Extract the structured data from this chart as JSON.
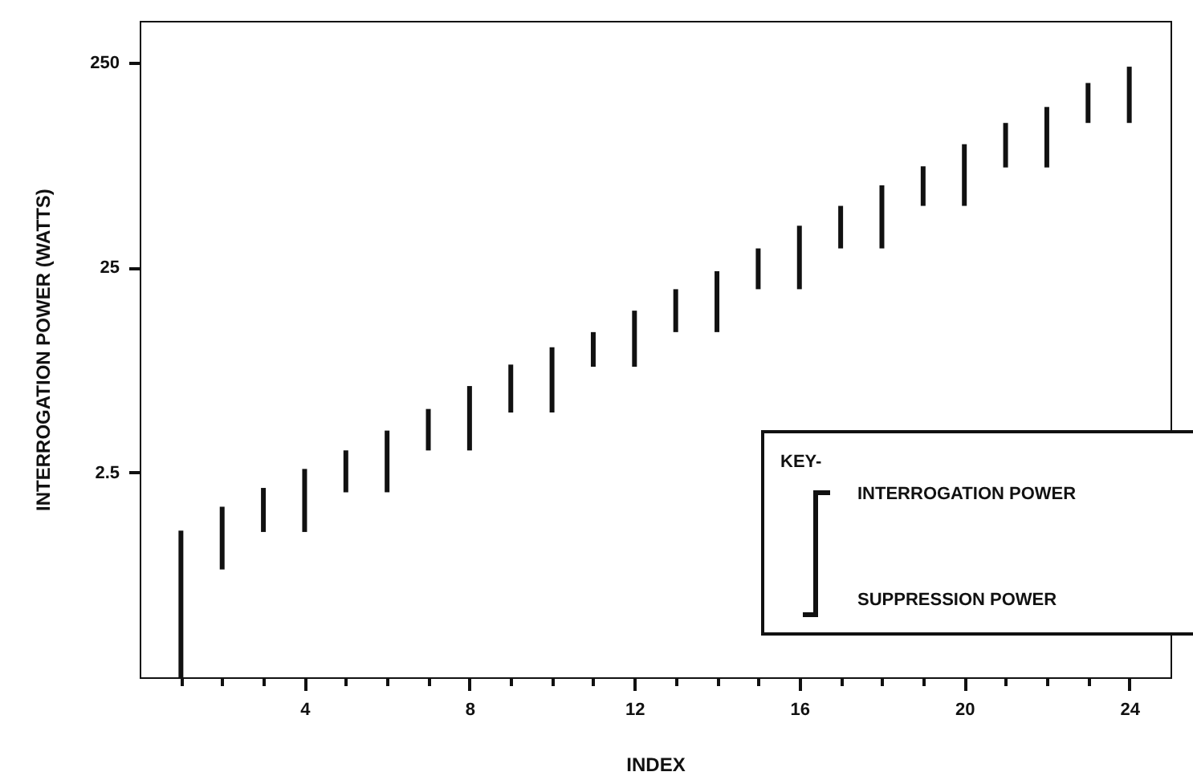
{
  "chart_data": {
    "type": "bar",
    "xlabel": "INDEX",
    "ylabel": "INTERROGATION POWER (WATTS)",
    "x": [
      1,
      2,
      3,
      4,
      5,
      6,
      7,
      8,
      9,
      10,
      11,
      12,
      13,
      14,
      15,
      16,
      17,
      18,
      19,
      20,
      21,
      22,
      23,
      24
    ],
    "base": [
      0.25,
      0.84,
      1.28,
      1.28,
      2.0,
      2.0,
      3.2,
      3.2,
      4.9,
      4.9,
      8.2,
      8.2,
      12.1,
      12.1,
      19.6,
      19.6,
      31,
      31,
      50,
      50,
      77,
      77,
      127,
      127
    ],
    "values": [
      1.05,
      0.86,
      0.82,
      1.32,
      1.2,
      2.0,
      1.9,
      3.4,
      3.5,
      5.3,
      3.9,
      7.2,
      7.5,
      11.9,
      11.4,
      20.4,
      19,
      32,
      28,
      50,
      50,
      75,
      72,
      112
    ],
    "color": "#111111",
    "log": "y",
    "ylim": [
      0.25,
      400
    ],
    "yticks": [
      2.5,
      25,
      250
    ],
    "xlim": [
      0,
      25
    ],
    "xticks": [
      {
        "value": 1,
        "label": null
      },
      {
        "value": 2,
        "label": null
      },
      {
        "value": 3,
        "label": null
      },
      4,
      {
        "value": 5,
        "label": null
      },
      {
        "value": 6,
        "label": null
      },
      {
        "value": 7,
        "label": null
      },
      8,
      {
        "value": 9,
        "label": null
      },
      {
        "value": 10,
        "label": null
      },
      {
        "value": 11,
        "label": null
      },
      12,
      {
        "value": 13,
        "label": null
      },
      {
        "value": 14,
        "label": null
      },
      {
        "value": 15,
        "label": null
      },
      16,
      {
        "value": 17,
        "label": null
      },
      {
        "value": 18,
        "label": null
      },
      {
        "value": 19,
        "label": null
      },
      20,
      {
        "value": 21,
        "label": null
      },
      {
        "value": 22,
        "label": null
      },
      {
        "value": 23,
        "label": null
      },
      24
    ],
    "annotations": [
      "KEY-",
      "INTERROGATION POWER",
      "SUPPRESSION POWER"
    ]
  }
}
